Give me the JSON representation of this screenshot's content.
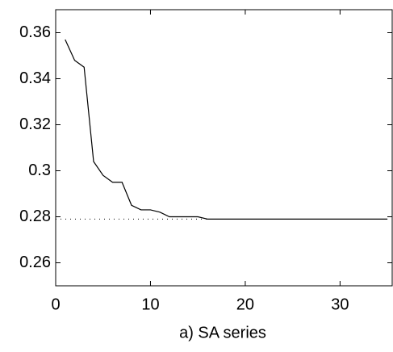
{
  "chart_data": {
    "type": "line",
    "xlabel": "a) SA series",
    "xlim": [
      0,
      35.5
    ],
    "ylim": [
      0.25,
      0.37
    ],
    "xticks": [
      0,
      10,
      20,
      30
    ],
    "yticks": [
      0.26,
      0.28,
      0.3,
      0.32,
      0.34,
      0.36
    ],
    "grid": false,
    "series": [
      {
        "color": "#000000",
        "style": "solid",
        "x": [
          1,
          2,
          3,
          4,
          5,
          6,
          7,
          8,
          9,
          10,
          11,
          12,
          13,
          14,
          15,
          16,
          17,
          18,
          19,
          20,
          21,
          22,
          23,
          24,
          25,
          26,
          27,
          28,
          29,
          30,
          31,
          32,
          33,
          34,
          35
        ],
        "values": [
          0.357,
          0.348,
          0.345,
          0.304,
          0.298,
          0.295,
          0.295,
          0.285,
          0.283,
          0.283,
          0.282,
          0.28,
          0.28,
          0.28,
          0.28,
          0.279,
          0.279,
          0.279,
          0.279,
          0.279,
          0.279,
          0.279,
          0.279,
          0.279,
          0.279,
          0.279,
          0.279,
          0.279,
          0.279,
          0.279,
          0.279,
          0.279,
          0.279,
          0.279,
          0.279
        ]
      },
      {
        "color": "#000000",
        "style": "dotted",
        "x": [
          0,
          16
        ],
        "values": [
          0.279,
          0.279
        ]
      }
    ]
  }
}
